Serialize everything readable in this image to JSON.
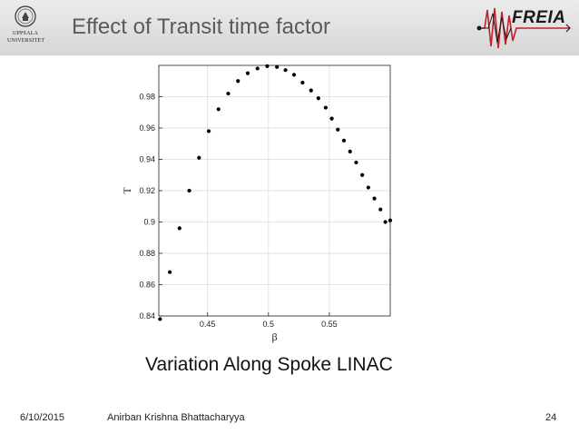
{
  "header": {
    "title": "Effect of Transit time factor",
    "university_logo_lines": [
      "UPPSALA",
      "UNIVERSITET"
    ],
    "project_logo": "FREIA",
    "colors": {
      "header_top": "#ececec",
      "header_bottom": "#d6d6d6",
      "title_text": "#5a5a5a",
      "freia_wave": "#c0202a"
    }
  },
  "chart_data": {
    "type": "scatter",
    "xlabel": "β",
    "ylabel": "T",
    "xlim": [
      0.41,
      0.6
    ],
    "ylim": [
      0.84,
      1.0
    ],
    "xticks": [
      "0.45",
      "0.5",
      "0.55"
    ],
    "yticks": [
      "0.84",
      "0.86",
      "0.88",
      "0.9",
      "0.92",
      "0.94",
      "0.96",
      "0.98"
    ],
    "grid": true,
    "marker_color": "#000000",
    "x": [
      0.411,
      0.419,
      0.427,
      0.435,
      0.443,
      0.451,
      0.459,
      0.467,
      0.475,
      0.483,
      0.491,
      0.499,
      0.507,
      0.514,
      0.521,
      0.528,
      0.535,
      0.541,
      0.547,
      0.552,
      0.557,
      0.562,
      0.567,
      0.572,
      0.577,
      0.582,
      0.587,
      0.592,
      0.596,
      0.6
    ],
    "y": [
      0.838,
      0.868,
      0.896,
      0.92,
      0.941,
      0.958,
      0.972,
      0.982,
      0.99,
      0.995,
      0.998,
      0.9995,
      0.999,
      0.997,
      0.994,
      0.989,
      0.984,
      0.979,
      0.973,
      0.966,
      0.959,
      0.952,
      0.945,
      0.938,
      0.93,
      0.922,
      0.915,
      0.908,
      0.9,
      0.901
    ]
  },
  "caption": "Variation Along Spoke LINAC",
  "footer": {
    "date": "6/10/2015",
    "author": "Anirban Krishna Bhattacharyya",
    "page": "24"
  }
}
